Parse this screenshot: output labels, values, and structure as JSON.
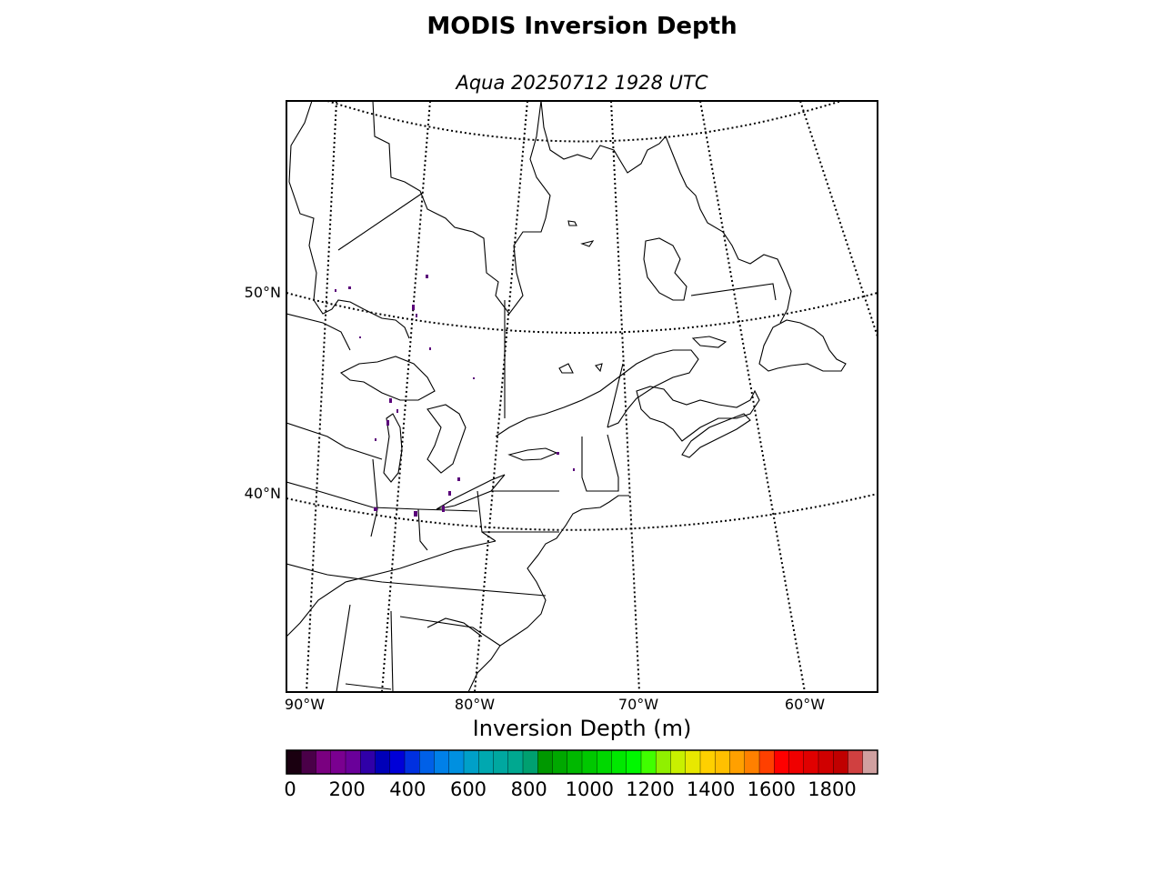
{
  "title": "MODIS Inversion Depth",
  "subtitle": "Aqua 20250712 1928 UTC",
  "map": {
    "lat_labels": [
      "50°N",
      "40°N"
    ],
    "lon_labels": [
      "90°W",
      "80°W",
      "70°W",
      "60°W"
    ],
    "graticule_style": "dotted",
    "coastline_color": "#000000",
    "frame_color": "#000000"
  },
  "colorbar": {
    "label": "Inversion Depth (m)",
    "ticks": [
      "0",
      "200",
      "400",
      "600",
      "800",
      "1000",
      "1200",
      "1400",
      "1600",
      "1800"
    ],
    "range": [
      0,
      1950
    ],
    "step": 50,
    "colors": [
      "#1a0010",
      "#4a0048",
      "#7a0080",
      "#7a0090",
      "#6a009a",
      "#3000a8",
      "#0000b8",
      "#0000d8",
      "#0030e0",
      "#0060e8",
      "#0080e8",
      "#0090e0",
      "#00a0c8",
      "#00a8b0",
      "#00a8a0",
      "#00a890",
      "#00a070",
      "#009800",
      "#00a800",
      "#00b800",
      "#00c800",
      "#00d800",
      "#00e800",
      "#00f800",
      "#40ff00",
      "#90f000",
      "#c8f000",
      "#e8e800",
      "#ffd000",
      "#ffc000",
      "#ffa000",
      "#ff8000",
      "#ff4000",
      "#ff0000",
      "#f00000",
      "#e00000",
      "#d00000",
      "#c00000",
      "#d04040",
      "#d0a0a0"
    ]
  }
}
